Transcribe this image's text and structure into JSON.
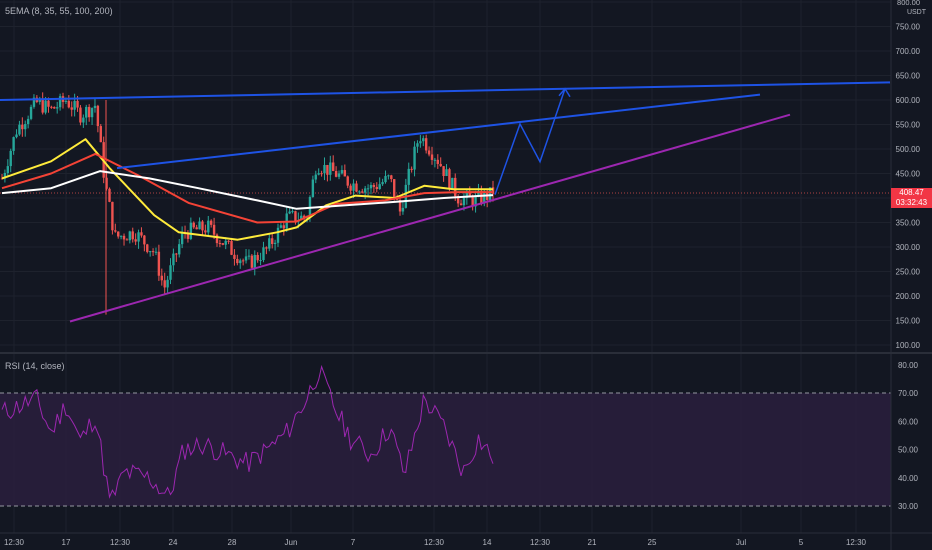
{
  "legend": {
    "main": "5EMA (8, 35, 55, 100, 200)",
    "rsi": "RSI (14, close)"
  },
  "price_axis": {
    "unit": "USDT",
    "last_price": "408.47",
    "countdown": "03:32:43"
  },
  "colors": {
    "background": "#131722",
    "grid": "#1e222d",
    "up": "#26a69a",
    "down": "#ef5350",
    "ema8": "#26a69a",
    "ema35": "#ffeb3b",
    "ema55": "#f44336",
    "ema100": "#b0b0b0",
    "ema200": "#ffffff",
    "channel": "#1e53e5",
    "support": "#9c27b0",
    "rsi_line": "#9c27b0",
    "rsi_band": "#2a1f3d",
    "price_tag": "#f23645"
  },
  "chart_data": [
    {
      "type": "candlestick",
      "title": "",
      "y_unit": "USDT",
      "ylim": [
        90,
        810
      ],
      "y_ticks": [
        100,
        150,
        200,
        250,
        300,
        350,
        400,
        450,
        500,
        550,
        600,
        650,
        700,
        750,
        800
      ],
      "y_tick_labels": [
        "100.00",
        "150.00",
        "200.00",
        "250.00",
        "300.00",
        "350.00",
        "400.00",
        "450.00",
        "500.00",
        "550.00",
        "600.00",
        "650.00",
        "700.00",
        "750.00",
        "800.00"
      ],
      "x_tick_labels": [
        "12:30",
        "17",
        "12:30",
        "24",
        "28",
        "Jun",
        "7",
        "12:30",
        "14",
        "12:30",
        "21",
        "25",
        "Jul",
        "5",
        "12:30"
      ],
      "last_price": 408.47,
      "price_path": [
        {
          "t": 0,
          "p": 440
        },
        {
          "t": 0.03,
          "p": 540
        },
        {
          "t": 0.07,
          "p": 595
        },
        {
          "t": 0.1,
          "p": 580
        },
        {
          "t": 0.13,
          "p": 600
        },
        {
          "t": 0.16,
          "p": 570
        },
        {
          "t": 0.19,
          "p": 590
        },
        {
          "t": 0.21,
          "p": 430
        },
        {
          "t": 0.23,
          "p": 320
        },
        {
          "t": 0.27,
          "p": 330
        },
        {
          "t": 0.31,
          "p": 290
        },
        {
          "t": 0.33,
          "p": 215
        },
        {
          "t": 0.37,
          "p": 330
        },
        {
          "t": 0.42,
          "p": 340
        },
        {
          "t": 0.46,
          "p": 300
        },
        {
          "t": 0.5,
          "p": 265
        },
        {
          "t": 0.54,
          "p": 295
        },
        {
          "t": 0.58,
          "p": 360
        },
        {
          "t": 0.62,
          "p": 360
        },
        {
          "t": 0.64,
          "p": 470
        },
        {
          "t": 0.68,
          "p": 450
        },
        {
          "t": 0.71,
          "p": 430
        },
        {
          "t": 0.75,
          "p": 420
        },
        {
          "t": 0.79,
          "p": 440
        },
        {
          "t": 0.81,
          "p": 370
        },
        {
          "t": 0.85,
          "p": 530
        },
        {
          "t": 0.89,
          "p": 475
        },
        {
          "t": 0.93,
          "p": 400
        },
        {
          "t": 0.96,
          "p": 395
        },
        {
          "t": 1,
          "p": 408.47
        }
      ],
      "ema_series": [
        {
          "key": "ema35",
          "points": [
            [
              0,
              440
            ],
            [
              0.1,
              475
            ],
            [
              0.17,
              520
            ],
            [
              0.22,
              460
            ],
            [
              0.31,
              365
            ],
            [
              0.36,
              330
            ],
            [
              0.48,
              315
            ],
            [
              0.56,
              330
            ],
            [
              0.6,
              340
            ],
            [
              0.66,
              385
            ],
            [
              0.72,
              405
            ],
            [
              0.8,
              400
            ],
            [
              0.86,
              425
            ],
            [
              0.92,
              418
            ],
            [
              1,
              418
            ]
          ]
        },
        {
          "key": "ema55",
          "points": [
            [
              0,
              420
            ],
            [
              0.1,
              450
            ],
            [
              0.19,
              490
            ],
            [
              0.28,
              445
            ],
            [
              0.38,
              390
            ],
            [
              0.52,
              350
            ],
            [
              0.6,
              352
            ],
            [
              0.68,
              388
            ],
            [
              0.78,
              395
            ],
            [
              0.86,
              410
            ],
            [
              0.93,
              412
            ],
            [
              1,
              412
            ]
          ]
        },
        {
          "key": "ema200",
          "points": [
            [
              0,
              410
            ],
            [
              0.1,
              420
            ],
            [
              0.2,
              455
            ],
            [
              0.3,
              440
            ],
            [
              0.4,
              420
            ],
            [
              0.52,
              395
            ],
            [
              0.6,
              378
            ],
            [
              0.7,
              385
            ],
            [
              0.8,
              392
            ],
            [
              0.9,
              400
            ],
            [
              1,
              406
            ]
          ]
        }
      ],
      "annotations": {
        "upper_resistance": [
          [
            0,
            600
          ],
          [
            890,
            636
          ]
        ],
        "channel_top": [
          [
            117,
            461
          ],
          [
            760,
            611
          ]
        ],
        "support": [
          [
            70,
            148
          ],
          [
            790,
            570
          ]
        ],
        "projection_path": [
          [
            495,
            407
          ],
          [
            520,
            551
          ],
          [
            540,
            474
          ],
          [
            565,
            623
          ]
        ]
      }
    },
    {
      "type": "line",
      "title": "",
      "name": "RSI (14, close)",
      "ylim": [
        25,
        85
      ],
      "y_ticks": [
        30,
        40,
        50,
        60,
        70,
        80
      ],
      "y_tick_labels": [
        "30.00",
        "40.00",
        "50.00",
        "60.00",
        "70.00",
        "80.00"
      ],
      "overbought": 70,
      "oversold": 30,
      "rsi_path": [
        {
          "t": 0,
          "p": 63
        },
        {
          "t": 0.07,
          "p": 68
        },
        {
          "t": 0.1,
          "p": 56
        },
        {
          "t": 0.13,
          "p": 66
        },
        {
          "t": 0.16,
          "p": 53
        },
        {
          "t": 0.19,
          "p": 62
        },
        {
          "t": 0.22,
          "p": 31
        },
        {
          "t": 0.25,
          "p": 42
        },
        {
          "t": 0.3,
          "p": 40
        },
        {
          "t": 0.34,
          "p": 33
        },
        {
          "t": 0.37,
          "p": 50
        },
        {
          "t": 0.41,
          "p": 52
        },
        {
          "t": 0.46,
          "p": 48
        },
        {
          "t": 0.5,
          "p": 45
        },
        {
          "t": 0.54,
          "p": 50
        },
        {
          "t": 0.58,
          "p": 56
        },
        {
          "t": 0.62,
          "p": 68
        },
        {
          "t": 0.645,
          "p": 78
        },
        {
          "t": 0.68,
          "p": 64
        },
        {
          "t": 0.71,
          "p": 54
        },
        {
          "t": 0.75,
          "p": 48
        },
        {
          "t": 0.79,
          "p": 58
        },
        {
          "t": 0.82,
          "p": 41
        },
        {
          "t": 0.86,
          "p": 68
        },
        {
          "t": 0.9,
          "p": 58
        },
        {
          "t": 0.94,
          "p": 42
        },
        {
          "t": 0.97,
          "p": 54
        },
        {
          "t": 1,
          "p": 47
        }
      ]
    }
  ]
}
